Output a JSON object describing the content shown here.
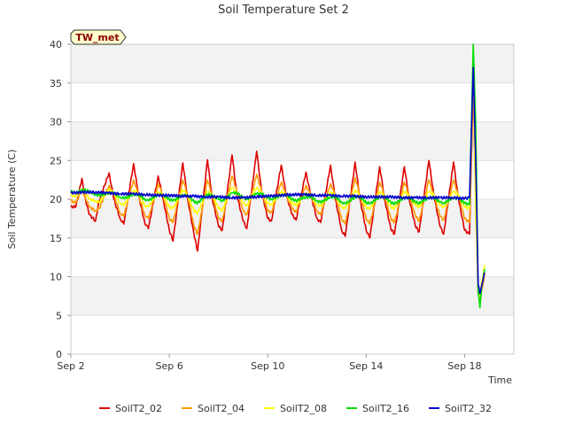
{
  "chart_data": {
    "type": "line",
    "title": "Soil Temperature Set 2",
    "xlabel": "Time",
    "ylabel": "Soil Temperature (C)",
    "badge": "TW_met",
    "xlim": [
      0,
      18
    ],
    "ylim": [
      0,
      40
    ],
    "x_ticks": [
      {
        "value": 0,
        "label": "Sep 2"
      },
      {
        "value": 4,
        "label": "Sep 6"
      },
      {
        "value": 8,
        "label": "Sep 10"
      },
      {
        "value": 12,
        "label": "Sep 14"
      },
      {
        "value": 16,
        "label": "Sep 18"
      }
    ],
    "y_ticks": [
      0,
      5,
      10,
      15,
      20,
      25,
      30,
      35,
      40
    ],
    "x_unit": "days since Sep 2",
    "grid": true,
    "legend_position": "bottom",
    "series": [
      {
        "name": "SoilT2_02",
        "color": "#dd0000",
        "x": [
          0,
          0.2,
          0.45,
          0.55,
          0.75,
          1.0,
          1.15,
          1.55,
          1.75,
          2.0,
          2.15,
          2.55,
          2.75,
          3.0,
          3.15,
          3.55,
          3.75,
          4.0,
          4.15,
          4.55,
          4.75,
          5.0,
          5.15,
          5.55,
          5.75,
          6.0,
          6.15,
          6.55,
          6.75,
          7.0,
          7.15,
          7.55,
          7.75,
          8.0,
          8.15,
          8.55,
          8.75,
          9.0,
          9.15,
          9.55,
          9.75,
          10.0,
          10.15,
          10.55,
          10.75,
          11.0,
          11.15,
          11.55,
          11.75,
          12.0,
          12.15,
          12.55,
          12.75,
          13.0,
          13.15,
          13.55,
          13.75,
          14.0,
          14.15,
          14.55,
          14.75,
          15.0,
          15.15,
          15.55,
          15.75,
          16.0,
          16.2,
          16.35,
          16.45,
          16.55,
          16.62,
          16.7,
          16.77,
          16.82
        ],
        "y": [
          19,
          19,
          22.7,
          20.5,
          18,
          17.2,
          19.8,
          23.4,
          20,
          17.5,
          16.8,
          24.6,
          20.5,
          17,
          16.2,
          23,
          20,
          16,
          14.6,
          24.7,
          20,
          15.5,
          13.3,
          25.1,
          20,
          16.5,
          16,
          25.7,
          20.5,
          17.2,
          16.2,
          26.2,
          21,
          17.5,
          17.2,
          24.4,
          20.5,
          18,
          17.3,
          23.5,
          20.5,
          17.5,
          17,
          24.4,
          20,
          16,
          15.2,
          24.8,
          20,
          16,
          15,
          24.2,
          20,
          16.2,
          15.5,
          24.2,
          20,
          16.5,
          15.8,
          25,
          20.5,
          16.5,
          15.5,
          24.8,
          20,
          16,
          15.5,
          35,
          20,
          8,
          7,
          8.5,
          9.5,
          10.5
        ]
      },
      {
        "name": "SoilT2_04",
        "color": "#ff9900",
        "x": [
          0,
          0.2,
          0.45,
          0.55,
          0.75,
          1.0,
          1.15,
          1.55,
          1.75,
          2.0,
          2.15,
          2.55,
          2.75,
          3.0,
          3.15,
          3.55,
          3.75,
          4.0,
          4.15,
          4.55,
          4.75,
          5.0,
          5.15,
          5.55,
          5.75,
          6.0,
          6.15,
          6.55,
          6.75,
          7.0,
          7.15,
          7.55,
          7.75,
          8.0,
          8.15,
          8.55,
          8.75,
          9.0,
          9.15,
          9.55,
          9.75,
          10.0,
          10.15,
          10.55,
          10.75,
          11.0,
          11.15,
          11.55,
          11.75,
          12.0,
          12.15,
          12.55,
          12.75,
          13.0,
          13.15,
          13.55,
          13.75,
          14.0,
          14.15,
          14.55,
          14.75,
          15.0,
          15.15,
          15.55,
          15.75,
          16.0,
          16.2,
          16.35,
          16.45,
          16.55,
          16.62,
          16.7,
          16.77,
          16.82
        ],
        "y": [
          19.8,
          19.5,
          21.2,
          20.5,
          19,
          18.5,
          18.8,
          21.8,
          20.5,
          18.2,
          17.8,
          22.5,
          20.5,
          18,
          17.5,
          22,
          20.5,
          17.5,
          17,
          22.5,
          20.5,
          16.5,
          15.5,
          22.5,
          20.5,
          17.5,
          17.2,
          23,
          21,
          18.5,
          18,
          23.2,
          21,
          18.5,
          18.3,
          22.2,
          20.5,
          18.8,
          18.3,
          21.8,
          20.5,
          18.5,
          18,
          22,
          20.5,
          17.5,
          16.8,
          22.8,
          20.5,
          17.5,
          16.8,
          22.2,
          20.5,
          17.5,
          17,
          22.2,
          20.5,
          17.8,
          17.2,
          22.5,
          20.5,
          17.8,
          17.3,
          22.5,
          20.5,
          17.5,
          17,
          36,
          20,
          8,
          6.8,
          8.5,
          9.5,
          10.5
        ]
      },
      {
        "name": "SoilT2_08",
        "color": "#ffff00",
        "x": [
          0,
          0.2,
          0.45,
          0.55,
          0.75,
          1.0,
          1.15,
          1.55,
          1.75,
          2.0,
          2.15,
          2.55,
          2.75,
          3.0,
          3.15,
          3.55,
          3.75,
          4.0,
          4.15,
          4.55,
          4.75,
          5.0,
          5.15,
          5.55,
          5.75,
          6.0,
          6.15,
          6.55,
          6.75,
          7.0,
          7.15,
          7.55,
          7.75,
          8.0,
          8.15,
          8.55,
          8.75,
          9.0,
          9.15,
          9.55,
          9.75,
          10.0,
          10.15,
          10.55,
          10.75,
          11.0,
          11.15,
          11.55,
          11.75,
          12.0,
          12.15,
          12.55,
          12.75,
          13.0,
          13.15,
          13.55,
          13.75,
          14.0,
          14.15,
          14.55,
          14.75,
          15.0,
          15.15,
          15.55,
          15.75,
          16.0,
          16.2,
          16.35,
          16.45,
          16.55,
          16.62,
          16.7,
          16.77,
          16.82
        ],
        "y": [
          20.5,
          20.3,
          21.3,
          21,
          20,
          19.8,
          19.6,
          21.3,
          20.8,
          19.5,
          19.2,
          21.2,
          20.8,
          19.2,
          19,
          21,
          20.5,
          19,
          18.8,
          21.2,
          20.5,
          18.5,
          18.2,
          21,
          20.5,
          18.8,
          18.6,
          21.5,
          20.8,
          19.5,
          19.2,
          21.5,
          20.8,
          19.5,
          19.3,
          21,
          20.5,
          19.5,
          19.2,
          20.8,
          20.5,
          19.3,
          19.1,
          21,
          20.5,
          19,
          18.8,
          21.2,
          20.5,
          19,
          18.7,
          21,
          20.5,
          19,
          18.8,
          21,
          20.5,
          19.2,
          19,
          21,
          20.5,
          19.2,
          19,
          21,
          20.5,
          19,
          18.8,
          38,
          18,
          8.2,
          7.5,
          9.5,
          10.5,
          11.5
        ]
      },
      {
        "name": "SoilT2_16",
        "color": "#00dd00",
        "x": [
          0,
          0.2,
          0.45,
          0.55,
          0.75,
          1.0,
          1.15,
          1.55,
          1.75,
          2.0,
          2.15,
          2.55,
          2.75,
          3.0,
          3.15,
          3.55,
          3.75,
          4.0,
          4.15,
          4.55,
          4.75,
          5.0,
          5.15,
          5.55,
          5.75,
          6.0,
          6.15,
          6.55,
          6.75,
          7.0,
          7.15,
          7.55,
          7.75,
          8.0,
          8.15,
          8.55,
          8.75,
          9.0,
          9.15,
          9.55,
          9.75,
          10.0,
          10.15,
          10.55,
          10.75,
          11.0,
          11.15,
          11.55,
          11.75,
          12.0,
          12.15,
          12.55,
          12.75,
          13.0,
          13.15,
          13.55,
          13.75,
          14.0,
          14.15,
          14.55,
          14.75,
          15.0,
          15.15,
          15.55,
          15.75,
          16.0,
          16.2,
          16.35,
          16.45,
          16.55,
          16.62,
          16.7,
          16.77,
          16.82
        ],
        "y": [
          21,
          20.8,
          21.2,
          21.2,
          21,
          20.6,
          20.5,
          20.8,
          20.8,
          20.3,
          20.1,
          20.6,
          20.6,
          20,
          19.8,
          20.6,
          20.5,
          20,
          19.8,
          20.5,
          20.5,
          19.7,
          19.5,
          20.6,
          20.5,
          20,
          19.8,
          20.8,
          20.8,
          20.2,
          20,
          20.7,
          20.7,
          20.2,
          20,
          20.5,
          20.5,
          20,
          19.8,
          20.3,
          20.3,
          19.8,
          19.6,
          20.3,
          20.3,
          19.6,
          19.4,
          20.3,
          20.3,
          19.6,
          19.4,
          20.3,
          20.3,
          19.6,
          19.4,
          20.2,
          20.2,
          19.6,
          19.5,
          20.2,
          20.2,
          19.6,
          19.5,
          20.2,
          20.1,
          19.5,
          19.3,
          40,
          30,
          8,
          6,
          9,
          10,
          11
        ]
      },
      {
        "name": "SoilT2_32",
        "color": "#0000cc",
        "x": [
          0,
          0.5,
          1,
          1.5,
          2,
          2.5,
          3,
          3.5,
          4,
          4.5,
          5,
          5.5,
          6,
          6.5,
          7,
          7.5,
          8,
          8.5,
          9,
          9.5,
          10,
          10.5,
          11,
          11.5,
          12,
          12.5,
          13,
          13.5,
          14,
          14.5,
          15,
          15.5,
          16,
          16.2,
          16.35,
          16.45,
          16.55,
          16.62,
          16.7,
          16.77,
          16.82
        ],
        "y": [
          20.8,
          20.9,
          20.9,
          20.8,
          20.7,
          20.7,
          20.6,
          20.5,
          20.5,
          20.4,
          20.4,
          20.3,
          20.3,
          20.2,
          20.2,
          20.3,
          20.4,
          20.5,
          20.6,
          20.6,
          20.5,
          20.5,
          20.4,
          20.4,
          20.3,
          20.3,
          20.3,
          20.2,
          20.2,
          20.2,
          20.2,
          20.2,
          20.1,
          20.2,
          37,
          25,
          9,
          7.8,
          9,
          10,
          10.5
        ]
      }
    ]
  }
}
